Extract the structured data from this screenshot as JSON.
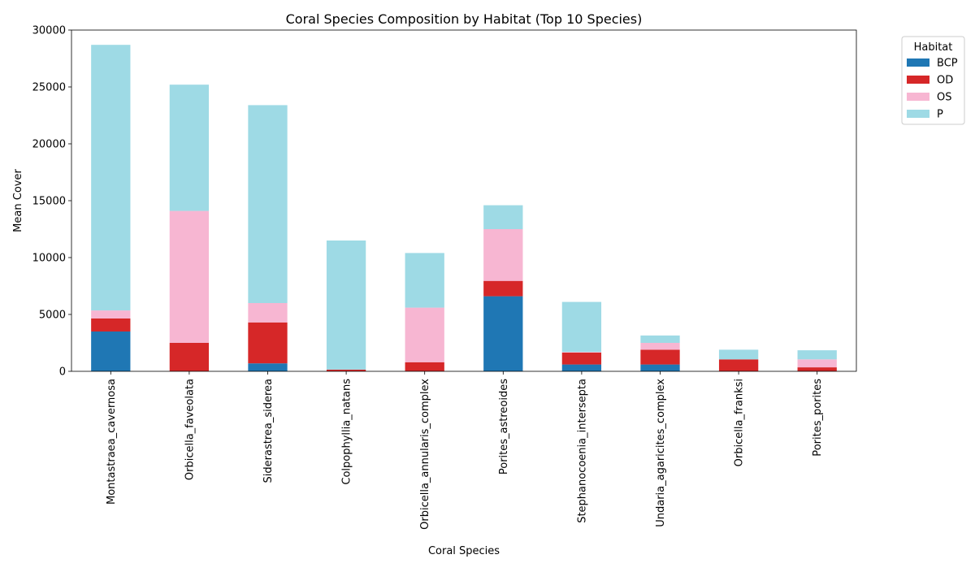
{
  "chart_data": {
    "type": "bar",
    "stacked": true,
    "title": "Coral Species Composition by Habitat (Top 10 Species)",
    "xlabel": "Coral Species",
    "ylabel": "Mean Cover",
    "ylim": [
      0,
      30000
    ],
    "yticks": [
      0,
      5000,
      10000,
      15000,
      20000,
      25000,
      30000
    ],
    "grid": false,
    "legend": {
      "title": "Habitat",
      "placement": "outside-top-right"
    },
    "categories": [
      "Montastraea_cavernosa",
      "Orbicella_faveolata",
      "Siderastrea_siderea",
      "Colpophyllia_natans",
      "Orbicella_annularis_complex",
      "Porites_astreoides",
      "Stephanocoenia_intersepta",
      "Undaria_agaricites_complex",
      "Orbicella_franksi",
      "Porites_porites"
    ],
    "series": [
      {
        "name": "BCP",
        "color": "#1f77b4",
        "values": [
          3500,
          0,
          700,
          0,
          0,
          6600,
          600,
          600,
          0,
          0
        ]
      },
      {
        "name": "OD",
        "color": "#d62728",
        "values": [
          1150,
          2500,
          3600,
          150,
          800,
          1350,
          1050,
          1300,
          1050,
          350
        ]
      },
      {
        "name": "OS",
        "color": "#f7b6d2",
        "values": [
          700,
          11600,
          1700,
          0,
          4800,
          4550,
          50,
          600,
          0,
          700
        ]
      },
      {
        "name": "P",
        "color": "#9edae5",
        "values": [
          23350,
          11100,
          17400,
          11350,
          4800,
          2100,
          4400,
          650,
          850,
          800
        ]
      }
    ]
  }
}
